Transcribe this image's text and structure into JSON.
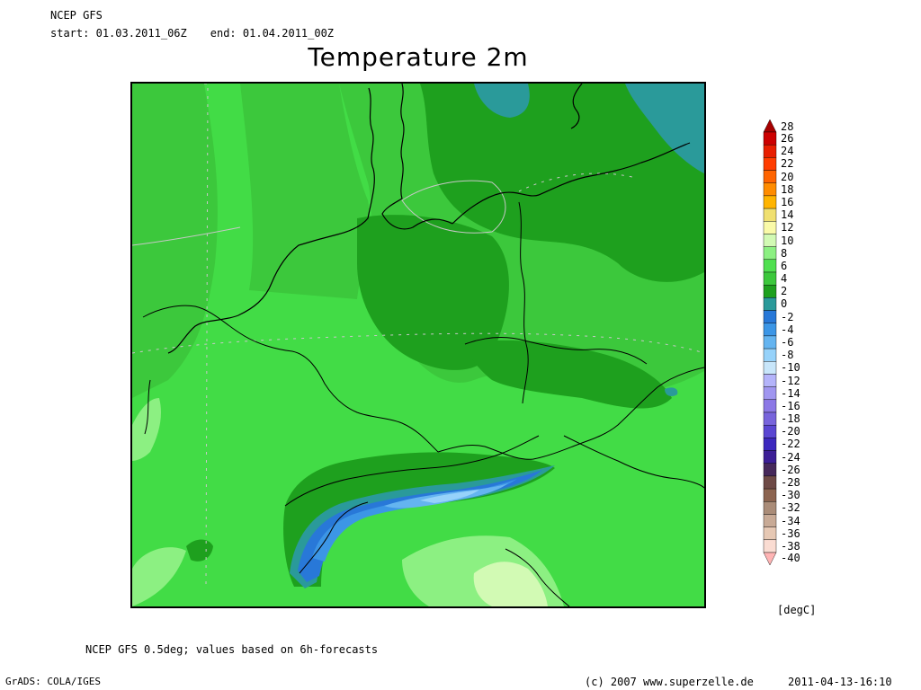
{
  "header": {
    "model": "NCEP GFS",
    "start_label": "start:",
    "start_value": "01.03.2011_06Z",
    "end_label": "end:",
    "end_value": "01.04.2011_00Z",
    "title": "Temperature 2m"
  },
  "colorbar": {
    "unit": "[degC]",
    "levels": [
      {
        "label": "28",
        "color": "#a60000"
      },
      {
        "label": "26",
        "color": "#cc0000"
      },
      {
        "label": "24",
        "color": "#e81e00"
      },
      {
        "label": "22",
        "color": "#ff3c00"
      },
      {
        "label": "20",
        "color": "#ff6400"
      },
      {
        "label": "18",
        "color": "#ff8c00"
      },
      {
        "label": "16",
        "color": "#ffb400"
      },
      {
        "label": "14",
        "color": "#f0e070"
      },
      {
        "label": "12",
        "color": "#fafaa8"
      },
      {
        "label": "10",
        "color": "#d2fab4"
      },
      {
        "label": "8",
        "color": "#8cf082"
      },
      {
        "label": "6",
        "color": "#50e050"
      },
      {
        "label": "4",
        "color": "#3cc83c"
      },
      {
        "label": "2",
        "color": "#1ea01e"
      },
      {
        "label": "0",
        "color": "#2a9a9a"
      },
      {
        "label": "-2",
        "color": "#2878d8"
      },
      {
        "label": "-4",
        "color": "#3c96e6"
      },
      {
        "label": "-6",
        "color": "#64b4f0"
      },
      {
        "label": "-8",
        "color": "#96d2fa"
      },
      {
        "label": "-10",
        "color": "#c8e6fa"
      },
      {
        "label": "-12",
        "color": "#b4b4fa"
      },
      {
        "label": "-14",
        "color": "#a096f0"
      },
      {
        "label": "-16",
        "color": "#8c78e6"
      },
      {
        "label": "-18",
        "color": "#7864dc"
      },
      {
        "label": "-20",
        "color": "#5a46d2"
      },
      {
        "label": "-22",
        "color": "#3c28be"
      },
      {
        "label": "-24",
        "color": "#3c1e96"
      },
      {
        "label": "-26",
        "color": "#46285a"
      },
      {
        "label": "-28",
        "color": "#6e4a46"
      },
      {
        "label": "-30",
        "color": "#8c6450"
      },
      {
        "label": "-32",
        "color": "#aa8c78"
      },
      {
        "label": "-34",
        "color": "#c8aa96"
      },
      {
        "label": "-36",
        "color": "#e6c8b4"
      },
      {
        "label": "-38",
        "color": "#fadcd2"
      },
      {
        "label": "-40",
        "color": "#ffb4b4"
      }
    ]
  },
  "map_colors": {
    "water_cold": "#2a9a9a",
    "green_2": "#1ea01e",
    "green_4": "#3cc83c",
    "green_6": "#50e050",
    "green_8": "#8cf082",
    "green_10": "#d2fab4",
    "blue_m2": "#2878d8",
    "blue_m4": "#3c96e6",
    "blue_m6": "#64b4f0",
    "blue_m8": "#96d2fa"
  },
  "footer": {
    "footnote": "NCEP GFS 0.5deg; values based on 6h-forecasts",
    "grads": "GrADS: COLA/IGES",
    "copyright": "(c) 2007 www.superzelle.de",
    "timestamp": "2011-04-13-16:10"
  }
}
